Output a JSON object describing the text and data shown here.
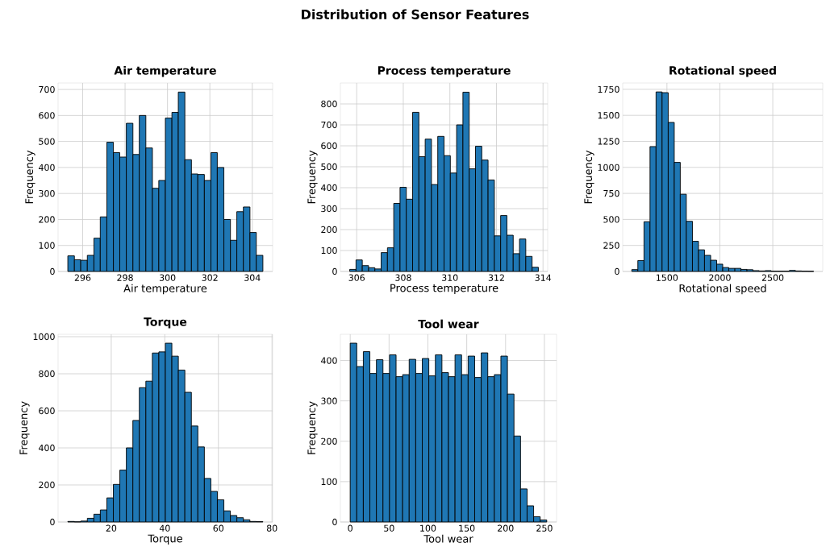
{
  "chart_data": [
    {
      "type": "other",
      "title": "Distribution of Sensor Features"
    },
    {
      "type": "histogram",
      "title": "Air temperature",
      "xlabel": "Air temperature",
      "ylabel": "Frequency",
      "color": "#1f77b4",
      "grid": true,
      "bins": [
        295.3,
        295.61,
        295.91,
        296.22,
        296.53,
        296.83,
        297.14,
        297.45,
        297.75,
        298.06,
        298.37,
        298.67,
        298.98,
        299.29,
        299.59,
        299.9,
        300.21,
        300.51,
        300.82,
        301.13,
        301.43,
        301.74,
        302.05,
        302.35,
        302.66,
        302.97,
        303.27,
        303.58,
        303.89,
        304.19,
        304.5
      ],
      "values": [
        60,
        45,
        43,
        62,
        128,
        210,
        497,
        457,
        440,
        570,
        450,
        600,
        475,
        320,
        350,
        590,
        612,
        690,
        430,
        375,
        373,
        350,
        457,
        400,
        200,
        120,
        230,
        248,
        150,
        62
      ],
      "xlim": [
        294.84,
        304.96
      ],
      "ylim": [
        0,
        725
      ],
      "xticks": [
        296,
        298,
        300,
        302,
        304
      ],
      "yticks": [
        0,
        100,
        200,
        300,
        400,
        500,
        600,
        700
      ]
    },
    {
      "type": "histogram",
      "title": "Process temperature",
      "xlabel": "Process temperature",
      "ylabel": "Frequency",
      "color": "#1f77b4",
      "grid": true,
      "bins": [
        305.7,
        305.97,
        306.24,
        306.51,
        306.78,
        307.05,
        307.32,
        307.59,
        307.86,
        308.13,
        308.4,
        308.67,
        308.94,
        309.21,
        309.48,
        309.75,
        310.02,
        310.29,
        310.56,
        310.83,
        311.1,
        311.37,
        311.64,
        311.91,
        312.18,
        312.45,
        312.72,
        312.99,
        313.26,
        313.53,
        313.8
      ],
      "values": [
        10,
        55,
        28,
        18,
        12,
        90,
        113,
        325,
        402,
        345,
        760,
        548,
        632,
        415,
        645,
        553,
        470,
        700,
        856,
        490,
        598,
        532,
        437,
        170,
        267,
        173,
        85,
        155,
        72,
        20
      ],
      "xlim": [
        305.3,
        314.2
      ],
      "ylim": [
        0,
        900
      ],
      "xticks": [
        306,
        308,
        310,
        312,
        314
      ],
      "yticks": [
        0,
        100,
        200,
        300,
        400,
        500,
        600,
        700,
        800
      ]
    },
    {
      "type": "histogram",
      "title": "Rotational speed",
      "xlabel": "Rotational speed",
      "ylabel": "Frequency",
      "color": "#1f77b4",
      "grid": true,
      "bins": [
        1168,
        1225,
        1283,
        1340,
        1397,
        1454,
        1512,
        1569,
        1626,
        1683,
        1741,
        1798,
        1855,
        1913,
        1970,
        2027,
        2084,
        2142,
        2199,
        2256,
        2313,
        2371,
        2428,
        2485,
        2542,
        2600,
        2657,
        2714,
        2772,
        2829,
        2886
      ],
      "values": [
        18,
        105,
        478,
        1200,
        1725,
        1718,
        1432,
        1048,
        742,
        482,
        290,
        208,
        155,
        108,
        70,
        38,
        30,
        30,
        20,
        17,
        8,
        5,
        8,
        3,
        3,
        3,
        10,
        5,
        3,
        2
      ],
      "xlim": [
        1082,
        2972
      ],
      "ylim": [
        0,
        1811
      ],
      "xticks": [
        1500,
        2000,
        2500
      ],
      "yticks": [
        0,
        250,
        500,
        750,
        1000,
        1250,
        1500,
        1750
      ]
    },
    {
      "type": "histogram",
      "title": "Torque",
      "xlabel": "Torque",
      "ylabel": "Frequency",
      "color": "#1f77b4",
      "grid": true,
      "bins": [
        3.8,
        6.23,
        8.65,
        11.08,
        13.51,
        15.93,
        18.36,
        20.79,
        23.21,
        25.64,
        28.07,
        30.49,
        32.92,
        35.35,
        37.77,
        40.2,
        42.63,
        45.05,
        47.48,
        49.91,
        52.33,
        54.76,
        57.19,
        59.61,
        62.04,
        64.47,
        66.89,
        69.32,
        71.75,
        74.17,
        76.6
      ],
      "values": [
        3,
        1,
        5,
        20,
        42,
        65,
        130,
        203,
        280,
        400,
        548,
        725,
        760,
        912,
        918,
        965,
        895,
        820,
        700,
        518,
        405,
        235,
        165,
        120,
        60,
        35,
        23,
        12,
        3,
        2
      ],
      "xlim": [
        0.16,
        80.24
      ],
      "ylim": [
        0,
        1013
      ],
      "xticks": [
        20,
        40,
        60,
        80
      ],
      "yticks": [
        0,
        200,
        400,
        600,
        800,
        1000
      ]
    },
    {
      "type": "histogram",
      "title": "Tool wear",
      "xlabel": "Tool wear",
      "ylabel": "Frequency",
      "color": "#1f77b4",
      "grid": true,
      "bins": [
        0,
        8.43,
        16.87,
        25.3,
        33.73,
        42.17,
        50.6,
        59.03,
        67.47,
        75.9,
        84.33,
        92.77,
        101.2,
        109.63,
        118.07,
        126.5,
        134.93,
        143.37,
        151.8,
        160.23,
        168.67,
        177.1,
        185.53,
        193.97,
        202.4,
        210.83,
        219.27,
        227.7,
        236.13,
        244.57,
        253.0
      ],
      "values": [
        443,
        385,
        422,
        368,
        402,
        368,
        414,
        360,
        365,
        403,
        368,
        405,
        362,
        414,
        370,
        360,
        414,
        365,
        411,
        358,
        419,
        360,
        365,
        411,
        317,
        213,
        82,
        40,
        13,
        5
      ],
      "xlim": [
        -12.65,
        265.65
      ],
      "ylim": [
        0,
        465
      ],
      "xticks": [
        0,
        50,
        100,
        150,
        200,
        250
      ],
      "yticks": [
        0,
        100,
        200,
        300,
        400
      ]
    }
  ]
}
